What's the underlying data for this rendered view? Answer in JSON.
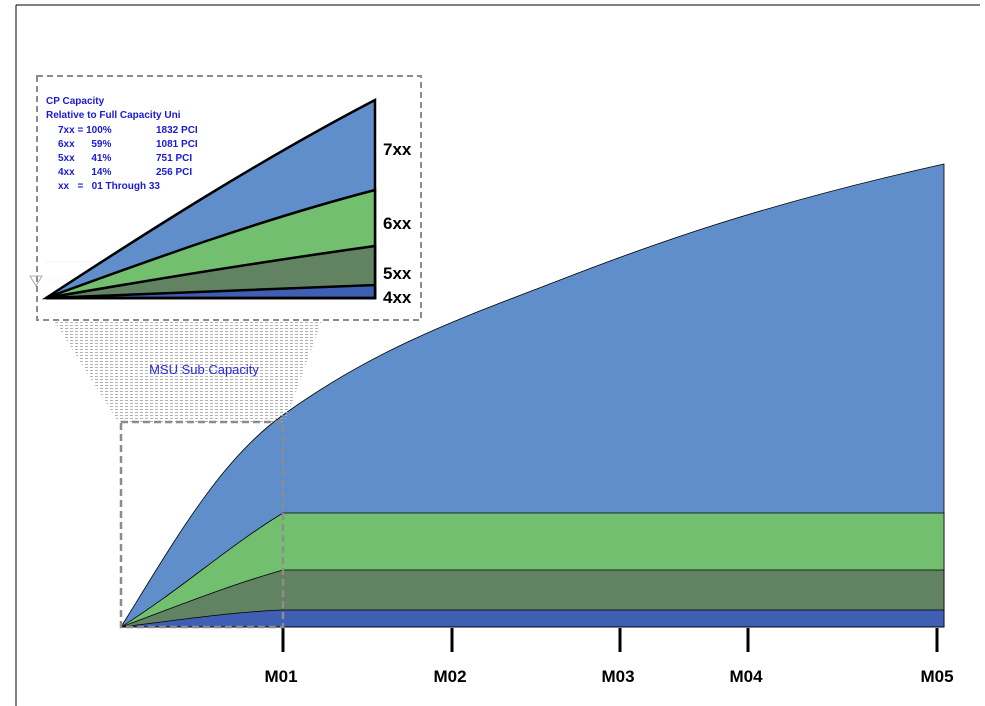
{
  "legend": {
    "title": "CP Capacity",
    "subtitle": "Relative to Full  Capacity Uni",
    "rows": [
      {
        "model": "7xx = 100%",
        "pci": "1832 PCI"
      },
      {
        "model": "6xx      59%",
        "pci": "1081 PCI"
      },
      {
        "model": "5xx      41%",
        "pci": "751 PCI"
      },
      {
        "model": "4xx      14%",
        "pci": "256 PCI"
      }
    ],
    "range": "xx   =   01 Through 33"
  },
  "zoom_labels": [
    "7xx",
    "6xx",
    "5xx",
    "4xx"
  ],
  "msu_label": "MSU Sub Capacity",
  "colors": {
    "7xx": "#5f8ecb",
    "6xx": "#73bf70",
    "5xx": "#628362",
    "4xx": "#3f5fb4"
  },
  "chart_data": {
    "type": "area",
    "categories": [
      "M01",
      "M02",
      "M03",
      "M04",
      "M05"
    ],
    "series": [
      {
        "name": "7xx",
        "values": [
          100,
          131,
          162,
          181,
          212
        ]
      },
      {
        "name": "6xx",
        "values": [
          59,
          59,
          59,
          59,
          59
        ]
      },
      {
        "name": "5xx",
        "values": [
          41,
          41,
          41,
          41,
          41
        ]
      },
      {
        "name": "4xx",
        "values": [
          14,
          14,
          14,
          14,
          14
        ]
      }
    ]
  }
}
